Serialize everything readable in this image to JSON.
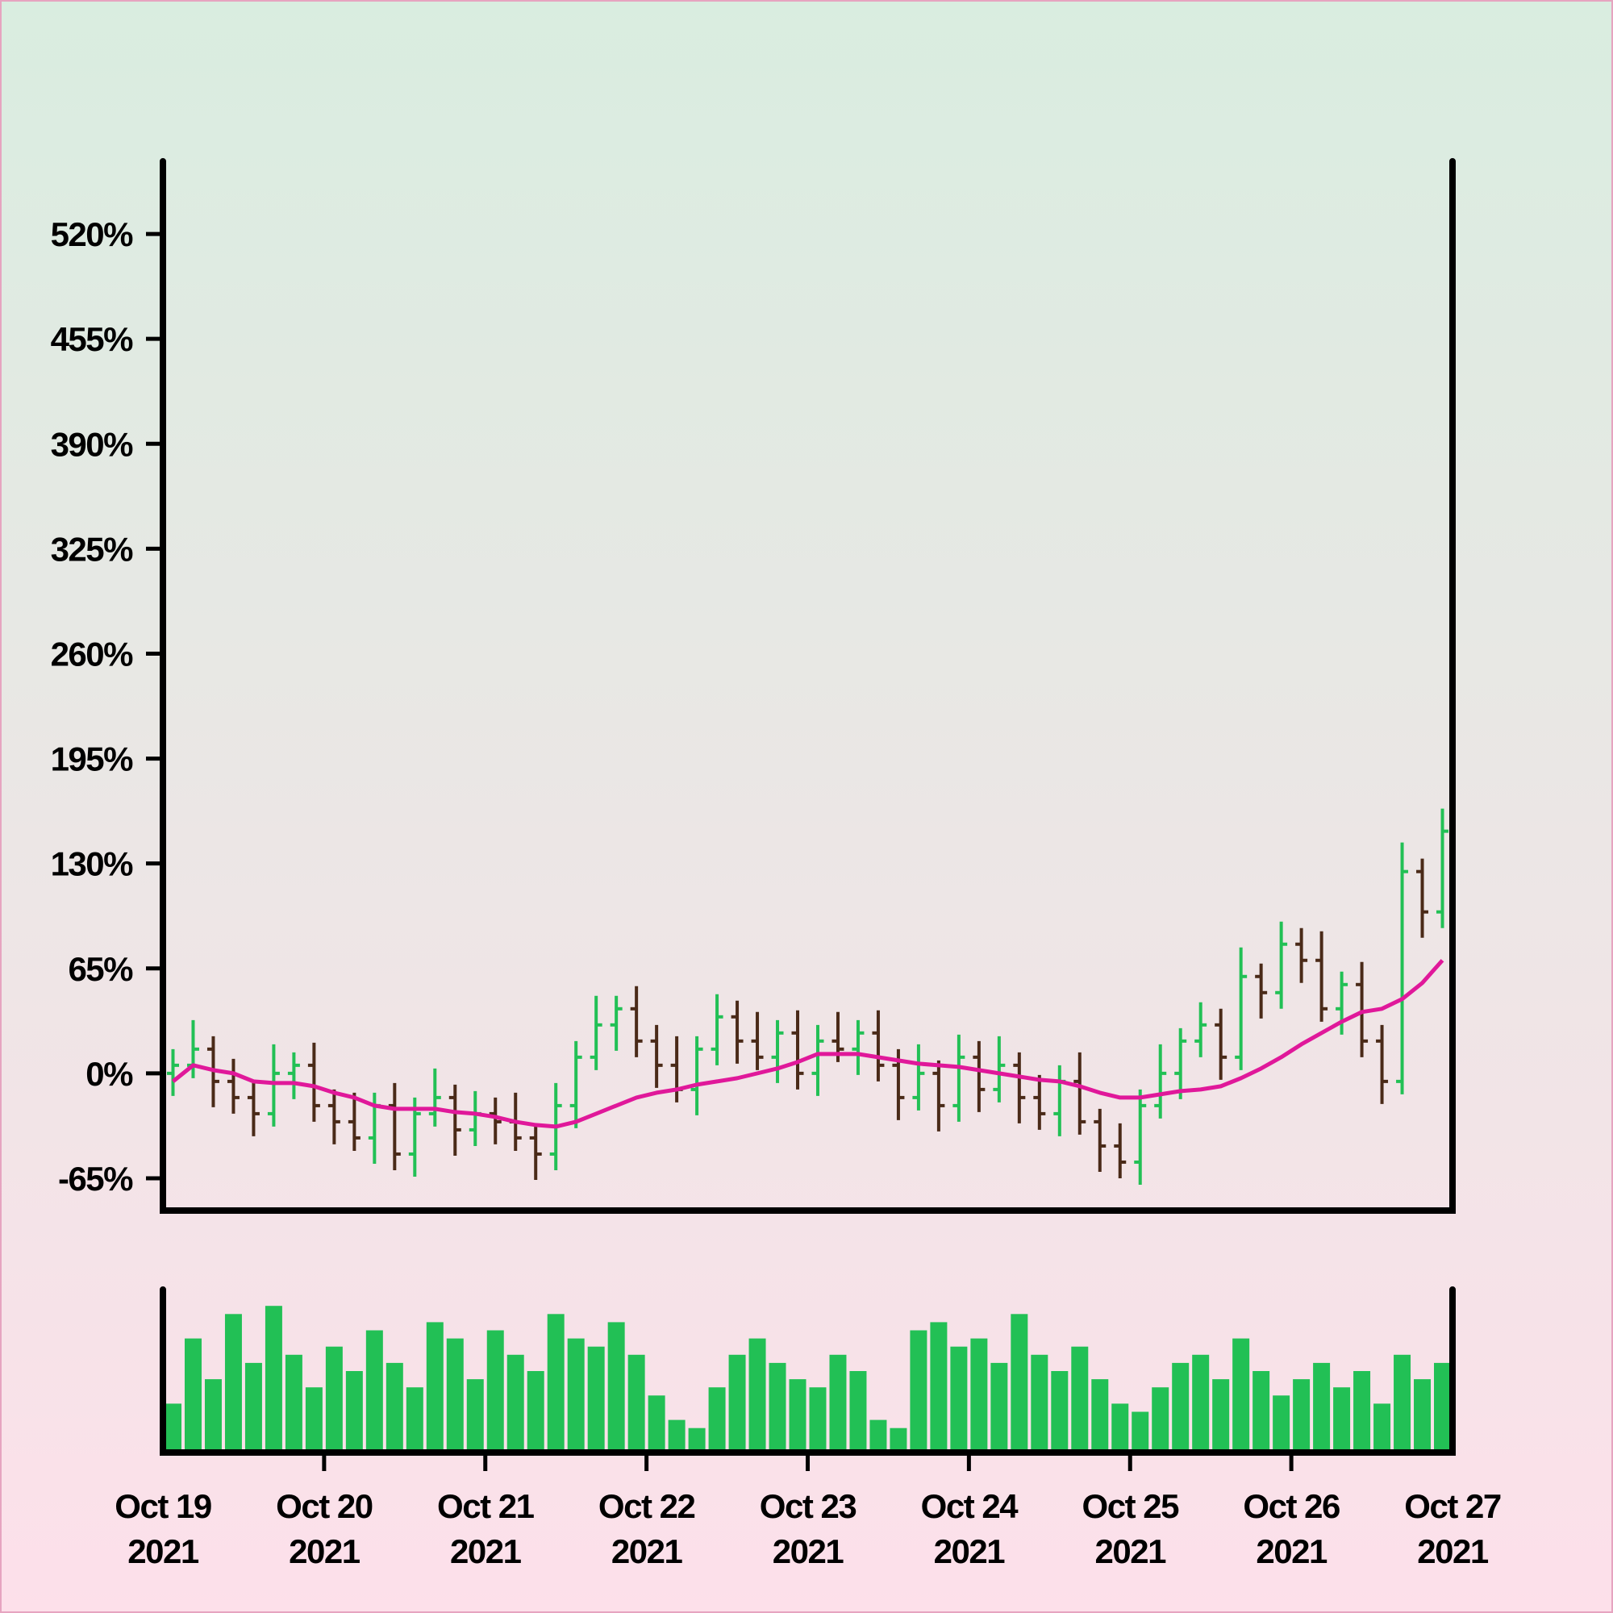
{
  "chart_data": {
    "type": "ohlc",
    "x": [
      0.0625,
      0.1875,
      0.3125,
      0.4375,
      0.5625,
      0.6875,
      0.8125,
      0.9375,
      1.0625,
      1.1875,
      1.3125,
      1.4375,
      1.5625,
      1.6875,
      1.8125,
      1.9375,
      2.0625,
      2.1875,
      2.3125,
      2.4375,
      2.5625,
      2.6875,
      2.8125,
      2.9375,
      3.0625,
      3.1875,
      3.3125,
      3.4375,
      3.5625,
      3.6875,
      3.8125,
      3.9375,
      4.0625,
      4.1875,
      4.3125,
      4.4375,
      4.5625,
      4.6875,
      4.8125,
      4.9375,
      5.0625,
      5.1875,
      5.3125,
      5.4375,
      5.5625,
      5.6875,
      5.8125,
      5.9375,
      6.0625,
      6.1875,
      6.3125,
      6.4375,
      6.5625,
      6.6875,
      6.8125,
      6.9375,
      7.0625,
      7.1875,
      7.3125,
      7.4375,
      7.5625,
      7.6875,
      7.8125,
      7.9375
    ],
    "open": [
      0,
      5,
      15,
      -5,
      -15,
      -25,
      0,
      5,
      -20,
      -30,
      -40,
      -20,
      -50,
      -25,
      -15,
      -35,
      -25,
      -30,
      -40,
      -50,
      -20,
      10,
      30,
      40,
      20,
      5,
      -10,
      15,
      35,
      20,
      10,
      25,
      0,
      20,
      15,
      25,
      5,
      -15,
      0,
      -20,
      10,
      -10,
      5,
      -15,
      -25,
      -5,
      -30,
      -45,
      -55,
      -20,
      0,
      20,
      30,
      10,
      60,
      50,
      80,
      70,
      40,
      55,
      20,
      -5,
      125,
      100
    ],
    "high": [
      15,
      33,
      23,
      9,
      -5,
      18,
      13,
      19,
      -10,
      -12,
      -12,
      -6,
      -15,
      3,
      -7,
      -11,
      -15,
      -12,
      -32,
      -6,
      20,
      48,
      48,
      54,
      30,
      23,
      23,
      49,
      45,
      38,
      33,
      39,
      30,
      38,
      33,
      39,
      15,
      18,
      8,
      24,
      20,
      23,
      13,
      -1,
      5,
      13,
      -22,
      -31,
      -10,
      18,
      28,
      44,
      40,
      78,
      68,
      94,
      90,
      88,
      63,
      69,
      30,
      143,
      133,
      164
    ],
    "low": [
      -14,
      -3,
      -21,
      -25,
      -39,
      -33,
      -16,
      -30,
      -44,
      -48,
      -56,
      -60,
      -64,
      -33,
      -51,
      -45,
      -44,
      -48,
      -66,
      -60,
      -34,
      2,
      14,
      10,
      -9,
      -18,
      -26,
      5,
      6,
      2,
      -6,
      -10,
      -14,
      7,
      -1,
      -5,
      -29,
      -23,
      -36,
      -30,
      -24,
      -18,
      -31,
      -35,
      -39,
      -38,
      -61,
      -65,
      -69,
      -28,
      -16,
      10,
      -4,
      2,
      34,
      40,
      56,
      32,
      24,
      10,
      -19,
      -13,
      84,
      90
    ],
    "close": [
      5,
      15,
      -5,
      -15,
      -25,
      0,
      5,
      -20,
      -30,
      -40,
      -20,
      -50,
      -25,
      -15,
      -35,
      -25,
      -30,
      -40,
      -50,
      -20,
      10,
      30,
      40,
      20,
      5,
      -10,
      15,
      35,
      20,
      10,
      25,
      0,
      20,
      15,
      25,
      5,
      -15,
      0,
      -20,
      10,
      -10,
      5,
      -15,
      -25,
      -5,
      -30,
      -45,
      -55,
      -20,
      0,
      20,
      30,
      10,
      60,
      50,
      80,
      70,
      40,
      55,
      20,
      -5,
      125,
      100,
      150
    ],
    "up_color": "#22c055",
    "down_color": "#4a2a18",
    "moving_average": {
      "color": "#e0189a",
      "values": [
        -5,
        5,
        2,
        0,
        -5,
        -6,
        -6,
        -8,
        -12,
        -15,
        -20,
        -22,
        -22,
        -22,
        -24,
        -25,
        -27,
        -30,
        -32,
        -33,
        -30,
        -25,
        -20,
        -15,
        -12,
        -10,
        -7,
        -5,
        -3,
        0,
        3,
        7,
        12,
        12,
        12,
        10,
        8,
        6,
        5,
        4,
        2,
        0,
        -2,
        -4,
        -5,
        -8,
        -12,
        -15,
        -15,
        -13,
        -11,
        -10,
        -8,
        -3,
        3,
        10,
        18,
        25,
        32,
        38,
        40,
        46,
        56,
        70
      ]
    },
    "volume": {
      "color": "#22c055",
      "ylim": [
        0,
        100
      ],
      "values": [
        30,
        70,
        45,
        85,
        55,
        90,
        60,
        40,
        65,
        50,
        75,
        55,
        40,
        80,
        70,
        45,
        75,
        60,
        50,
        85,
        70,
        65,
        80,
        60,
        35,
        20,
        15,
        40,
        60,
        70,
        55,
        45,
        40,
        60,
        50,
        20,
        15,
        75,
        80,
        65,
        70,
        55,
        85,
        60,
        50,
        65,
        45,
        30,
        25,
        40,
        55,
        60,
        45,
        70,
        50,
        35,
        45,
        55,
        40,
        50,
        30,
        60,
        45,
        55
      ]
    },
    "xlim": [
      0,
      8
    ],
    "xticks": [
      {
        "value": 0,
        "label": "Oct 19 2021"
      },
      {
        "value": 1,
        "label": "Oct 20 2021"
      },
      {
        "value": 2,
        "label": "Oct 21 2021"
      },
      {
        "value": 3,
        "label": "Oct 22 2021"
      },
      {
        "value": 4,
        "label": "Oct 23 2021"
      },
      {
        "value": 5,
        "label": "Oct 24 2021"
      },
      {
        "value": 6,
        "label": "Oct 25 2021"
      },
      {
        "value": 7,
        "label": "Oct 26 2021"
      },
      {
        "value": 8,
        "label": "Oct 27 2021"
      }
    ],
    "ylim": [
      -85,
      565
    ],
    "yticks": [
      {
        "value": -65,
        "label": "-65%"
      },
      {
        "value": 0,
        "label": "0%"
      },
      {
        "value": 65,
        "label": "65%"
      },
      {
        "value": 130,
        "label": "130%"
      },
      {
        "value": 195,
        "label": "195%"
      },
      {
        "value": 260,
        "label": "260%"
      },
      {
        "value": 325,
        "label": "325%"
      },
      {
        "value": 390,
        "label": "390%"
      },
      {
        "value": 455,
        "label": "455%"
      },
      {
        "value": 520,
        "label": "520%"
      }
    ]
  }
}
